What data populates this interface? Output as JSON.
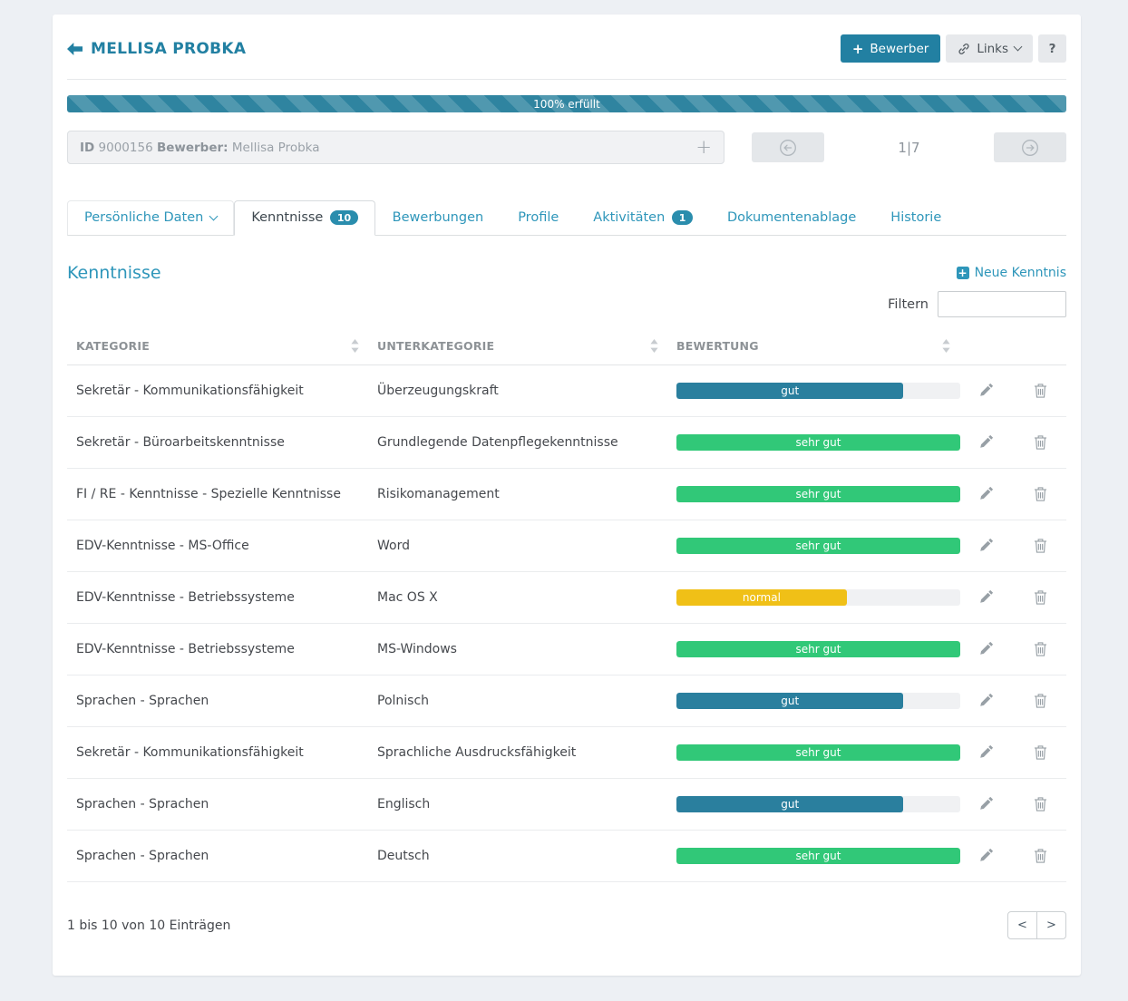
{
  "header": {
    "title": "MELLISA PROBKA",
    "bewerber_button": "Bewerber",
    "links_button": "Links",
    "help_button": "?"
  },
  "progress": {
    "label": "100% erfüllt",
    "percent": 100
  },
  "record_bar": {
    "id_label": "ID",
    "id_value": "9000156",
    "type_label": "Bewerber:",
    "name": "Mellisa Probka",
    "position": "1|7",
    "add_symbol": "+"
  },
  "tabs": [
    {
      "label": "Persönliche Daten",
      "caret": true
    },
    {
      "label": "Kenntnisse",
      "badge": "10",
      "active": true
    },
    {
      "label": "Bewerbungen"
    },
    {
      "label": "Profile"
    },
    {
      "label": "Aktivitäten",
      "badge": "1"
    },
    {
      "label": "Dokumentenablage"
    },
    {
      "label": "Historie"
    }
  ],
  "section": {
    "title": "Kenntnisse",
    "new_link": "Neue Kenntnis",
    "filter_label": "Filtern",
    "filter_value": ""
  },
  "table": {
    "columns": [
      "KATEGORIE",
      "UNTERKATEGORIE",
      "BEWERTUNG"
    ],
    "rows": [
      {
        "kategorie": "Sekretär - Kommunikationsfähigkeit",
        "unterkategorie": "Überzeugungskraft",
        "bewertung": "gut",
        "percent": 80
      },
      {
        "kategorie": "Sekretär - Büroarbeitskenntnisse",
        "unterkategorie": "Grundlegende Datenpflegekenntnisse",
        "bewertung": "sehr gut",
        "percent": 100
      },
      {
        "kategorie": "FI / RE - Kenntnisse - Spezielle Kenntnisse",
        "unterkategorie": "Risikomanagement",
        "bewertung": "sehr gut",
        "percent": 100
      },
      {
        "kategorie": "EDV-Kenntnisse - MS-Office",
        "unterkategorie": "Word",
        "bewertung": "sehr gut",
        "percent": 100
      },
      {
        "kategorie": "EDV-Kenntnisse - Betriebssysteme",
        "unterkategorie": "Mac OS X",
        "bewertung": "normal",
        "percent": 60
      },
      {
        "kategorie": "EDV-Kenntnisse - Betriebssysteme",
        "unterkategorie": "MS-Windows",
        "bewertung": "sehr gut",
        "percent": 100
      },
      {
        "kategorie": "Sprachen - Sprachen",
        "unterkategorie": "Polnisch",
        "bewertung": "gut",
        "percent": 80
      },
      {
        "kategorie": "Sekretär - Kommunikationsfähigkeit",
        "unterkategorie": "Sprachliche Ausdrucksfähigkeit",
        "bewertung": "sehr gut",
        "percent": 100
      },
      {
        "kategorie": "Sprachen - Sprachen",
        "unterkategorie": "Englisch",
        "bewertung": "gut",
        "percent": 80
      },
      {
        "kategorie": "Sprachen - Sprachen",
        "unterkategorie": "Deutsch",
        "bewertung": "sehr gut",
        "percent": 100
      }
    ]
  },
  "footer": {
    "info": "1 bis 10 von 10 Einträgen",
    "prev": "<",
    "next": ">"
  },
  "colors": {
    "primary": "#2280a2",
    "link": "#2e96ba",
    "rating_gut": "#2a7f9e",
    "rating_sehr_gut": "#31c878",
    "rating_normal": "#f0c017"
  }
}
